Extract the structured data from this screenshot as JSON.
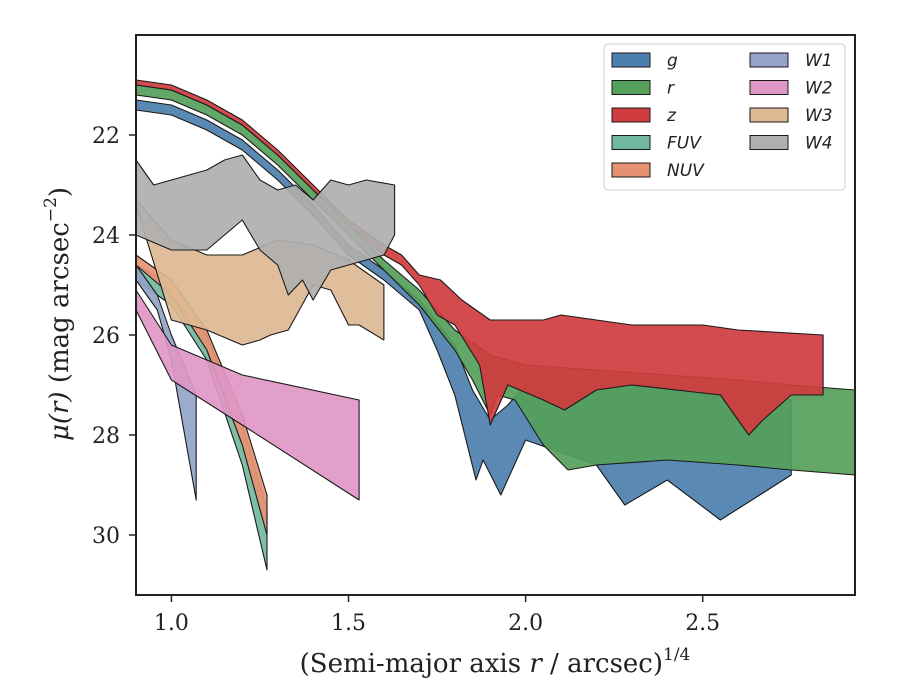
{
  "chart_data": {
    "type": "area",
    "xlabel_main": "(Semi-major axis ",
    "xlabel_var": "r",
    "xlabel_unit": " / arcsec)",
    "xlabel_exp": "1/4",
    "ylabel_mu": "μ",
    "ylabel_arg": "(r)",
    "ylabel_unit": " (mag arcsec",
    "ylabel_exp": "−2",
    "ylabel_close": ")",
    "xlim": [
      0.9,
      2.93
    ],
    "ylim": [
      31.2,
      20.0
    ],
    "y_inverted": true,
    "x_ticks": [
      1.0,
      1.5,
      2.0,
      2.5
    ],
    "x_tick_labels": [
      "1.0",
      "1.5",
      "2.0",
      "2.5"
    ],
    "y_ticks": [
      22,
      24,
      26,
      28,
      30
    ],
    "y_tick_labels": [
      "22",
      "24",
      "26",
      "28",
      "30"
    ],
    "grid": false,
    "legend_position": "top-right",
    "legend_columns": 2,
    "series": [
      {
        "name": "g",
        "color": "#4c7fae",
        "upper": [
          [
            0.9,
            21.3
          ],
          [
            1.0,
            21.4
          ],
          [
            1.1,
            21.7
          ],
          [
            1.2,
            22.1
          ],
          [
            1.3,
            22.7
          ],
          [
            1.4,
            23.4
          ],
          [
            1.5,
            24.2
          ],
          [
            1.6,
            24.7
          ],
          [
            1.7,
            25.3
          ],
          [
            1.8,
            26.2
          ],
          [
            1.85,
            27.1
          ],
          [
            1.9,
            27.7
          ],
          [
            1.95,
            27.4
          ],
          [
            2.0,
            27.0
          ],
          [
            2.1,
            26.9
          ],
          [
            2.3,
            26.9
          ],
          [
            2.5,
            27.0
          ],
          [
            2.6,
            27.1
          ],
          [
            2.75,
            27.3
          ]
        ],
        "lower": [
          [
            2.75,
            28.8
          ],
          [
            2.55,
            29.7
          ],
          [
            2.4,
            28.9
          ],
          [
            2.28,
            29.4
          ],
          [
            2.2,
            28.6
          ],
          [
            2.08,
            28.3
          ],
          [
            2.0,
            28.1
          ],
          [
            1.93,
            29.2
          ],
          [
            1.88,
            28.5
          ],
          [
            1.86,
            28.9
          ],
          [
            1.8,
            27.2
          ],
          [
            1.75,
            26.3
          ],
          [
            1.7,
            25.5
          ],
          [
            1.6,
            24.9
          ],
          [
            1.5,
            24.4
          ],
          [
            1.4,
            23.6
          ],
          [
            1.3,
            22.9
          ],
          [
            1.2,
            22.3
          ],
          [
            1.1,
            21.9
          ],
          [
            1.0,
            21.6
          ],
          [
            0.9,
            21.5
          ]
        ]
      },
      {
        "name": "r",
        "color": "#55a05a",
        "upper": [
          [
            0.9,
            21.0
          ],
          [
            1.0,
            21.1
          ],
          [
            1.1,
            21.4
          ],
          [
            1.2,
            21.8
          ],
          [
            1.3,
            22.4
          ],
          [
            1.4,
            23.1
          ],
          [
            1.5,
            23.8
          ],
          [
            1.6,
            24.5
          ],
          [
            1.7,
            25.1
          ],
          [
            1.8,
            25.9
          ],
          [
            1.9,
            26.4
          ],
          [
            2.0,
            26.6
          ],
          [
            2.2,
            26.7
          ],
          [
            2.4,
            26.8
          ],
          [
            2.6,
            26.9
          ],
          [
            2.75,
            27.0
          ],
          [
            2.93,
            27.1
          ]
        ],
        "lower": [
          [
            2.93,
            28.8
          ],
          [
            2.75,
            28.7
          ],
          [
            2.6,
            28.6
          ],
          [
            2.4,
            28.5
          ],
          [
            2.2,
            28.6
          ],
          [
            2.12,
            28.7
          ],
          [
            2.05,
            28.2
          ],
          [
            1.97,
            27.3
          ],
          [
            1.92,
            27.2
          ],
          [
            1.9,
            27.6
          ],
          [
            1.85,
            26.9
          ],
          [
            1.8,
            26.3
          ],
          [
            1.7,
            25.4
          ],
          [
            1.6,
            24.7
          ],
          [
            1.5,
            24.0
          ],
          [
            1.4,
            23.3
          ],
          [
            1.3,
            22.6
          ],
          [
            1.2,
            22.0
          ],
          [
            1.1,
            21.6
          ],
          [
            1.0,
            21.3
          ],
          [
            0.9,
            21.2
          ]
        ]
      },
      {
        "name": "z",
        "color": "#d03c3f",
        "upper": [
          [
            0.9,
            20.9
          ],
          [
            1.0,
            21.0
          ],
          [
            1.1,
            21.3
          ],
          [
            1.2,
            21.7
          ],
          [
            1.3,
            22.3
          ],
          [
            1.4,
            23.0
          ],
          [
            1.5,
            23.7
          ],
          [
            1.6,
            24.2
          ],
          [
            1.65,
            24.4
          ],
          [
            1.7,
            24.8
          ],
          [
            1.76,
            24.9
          ],
          [
            1.82,
            25.3
          ],
          [
            1.86,
            25.5
          ],
          [
            1.9,
            25.7
          ],
          [
            2.05,
            25.7
          ],
          [
            2.1,
            25.6
          ],
          [
            2.3,
            25.8
          ],
          [
            2.5,
            25.8
          ],
          [
            2.6,
            25.9
          ],
          [
            2.84,
            26.0
          ]
        ],
        "lower": [
          [
            2.84,
            27.2
          ],
          [
            2.75,
            27.2
          ],
          [
            2.67,
            27.7
          ],
          [
            2.63,
            28.0
          ],
          [
            2.55,
            27.2
          ],
          [
            2.3,
            27.0
          ],
          [
            2.2,
            27.1
          ],
          [
            2.11,
            27.5
          ],
          [
            2.05,
            27.3
          ],
          [
            1.95,
            27.0
          ],
          [
            1.9,
            27.8
          ],
          [
            1.87,
            26.6
          ],
          [
            1.8,
            25.8
          ],
          [
            1.75,
            25.6
          ],
          [
            1.7,
            25.0
          ],
          [
            1.65,
            24.6
          ],
          [
            1.6,
            24.4
          ],
          [
            1.5,
            23.8
          ],
          [
            1.4,
            23.1
          ],
          [
            1.3,
            22.4
          ],
          [
            1.2,
            21.8
          ],
          [
            1.1,
            21.4
          ],
          [
            1.0,
            21.1
          ],
          [
            0.9,
            21.0
          ]
        ]
      },
      {
        "name": "FUV",
        "color": "#72b8a0",
        "upper": [
          [
            0.9,
            24.6
          ],
          [
            1.0,
            25.0
          ],
          [
            1.1,
            26.0
          ],
          [
            1.2,
            27.8
          ],
          [
            1.27,
            29.5
          ]
        ],
        "lower": [
          [
            1.27,
            30.7
          ],
          [
            1.2,
            28.6
          ],
          [
            1.1,
            26.5
          ],
          [
            1.0,
            25.4
          ],
          [
            0.9,
            24.9
          ]
        ]
      },
      {
        "name": "NUV",
        "color": "#e69272",
        "upper": [
          [
            0.9,
            24.4
          ],
          [
            1.0,
            24.9
          ],
          [
            1.1,
            25.9
          ],
          [
            1.2,
            27.6
          ],
          [
            1.27,
            29.2
          ]
        ],
        "lower": [
          [
            1.27,
            30.0
          ],
          [
            1.2,
            28.2
          ],
          [
            1.1,
            26.3
          ],
          [
            1.0,
            25.2
          ],
          [
            0.9,
            24.6
          ]
        ]
      },
      {
        "name": "W1",
        "color": "#93a4c8",
        "upper": [
          [
            0.9,
            24.6
          ],
          [
            0.96,
            25.2
          ],
          [
            1.0,
            26.0
          ],
          [
            1.07,
            27.2
          ]
        ],
        "lower": [
          [
            1.07,
            29.3
          ],
          [
            1.0,
            26.5
          ],
          [
            0.96,
            25.5
          ],
          [
            0.9,
            24.9
          ]
        ]
      },
      {
        "name": "W2",
        "color": "#de97c6",
        "upper": [
          [
            0.9,
            25.1
          ],
          [
            1.0,
            26.2
          ],
          [
            1.2,
            26.8
          ],
          [
            1.53,
            27.3
          ]
        ],
        "lower": [
          [
            1.53,
            29.3
          ],
          [
            1.2,
            27.8
          ],
          [
            1.0,
            26.9
          ],
          [
            0.9,
            25.5
          ]
        ]
      },
      {
        "name": "W3",
        "color": "#deb992",
        "upper": [
          [
            0.9,
            23.3
          ],
          [
            1.0,
            24.1
          ],
          [
            1.1,
            24.4
          ],
          [
            1.2,
            24.4
          ],
          [
            1.3,
            24.1
          ],
          [
            1.4,
            24.2
          ],
          [
            1.5,
            24.5
          ],
          [
            1.6,
            25.0
          ]
        ],
        "lower": [
          [
            1.6,
            26.1
          ],
          [
            1.53,
            25.8
          ],
          [
            1.5,
            25.8
          ],
          [
            1.45,
            25.1
          ],
          [
            1.4,
            25.0
          ],
          [
            1.33,
            25.9
          ],
          [
            1.28,
            26.0
          ],
          [
            1.25,
            26.1
          ],
          [
            1.2,
            26.2
          ],
          [
            1.1,
            25.9
          ],
          [
            1.0,
            25.7
          ],
          [
            0.9,
            23.4
          ]
        ]
      },
      {
        "name": "W4",
        "color": "#afafaf",
        "upper": [
          [
            0.9,
            22.5
          ],
          [
            0.95,
            23.0
          ],
          [
            1.0,
            22.9
          ],
          [
            1.1,
            22.7
          ],
          [
            1.15,
            22.5
          ],
          [
            1.2,
            22.4
          ],
          [
            1.25,
            22.9
          ],
          [
            1.3,
            23.1
          ],
          [
            1.35,
            23.0
          ],
          [
            1.4,
            23.3
          ],
          [
            1.45,
            22.9
          ],
          [
            1.5,
            23.0
          ],
          [
            1.55,
            22.9
          ],
          [
            1.63,
            23.0
          ]
        ],
        "lower": [
          [
            1.63,
            24.0
          ],
          [
            1.6,
            24.4
          ],
          [
            1.5,
            24.6
          ],
          [
            1.45,
            24.7
          ],
          [
            1.4,
            25.3
          ],
          [
            1.37,
            24.9
          ],
          [
            1.33,
            25.2
          ],
          [
            1.3,
            24.6
          ],
          [
            1.25,
            24.3
          ],
          [
            1.2,
            23.7
          ],
          [
            1.1,
            24.3
          ],
          [
            1.0,
            24.3
          ],
          [
            0.9,
            24.0
          ]
        ]
      }
    ]
  }
}
